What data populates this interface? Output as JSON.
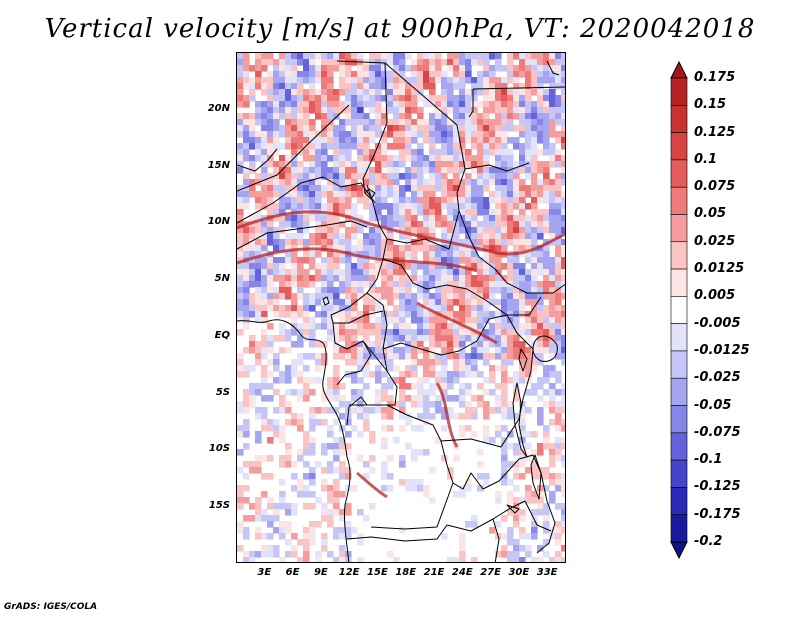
{
  "title": "Vertical velocity [m/s] at 900hPa, VT: 2020042018",
  "credit": "GrADS: IGES/COLA",
  "map": {
    "lon_range": [
      0,
      35
    ],
    "lat_range": [
      -20,
      25
    ],
    "lat_ticks": [
      {
        "value": 20,
        "label": "20N"
      },
      {
        "value": 15,
        "label": "15N"
      },
      {
        "value": 10,
        "label": "10N"
      },
      {
        "value": 5,
        "label": "5N"
      },
      {
        "value": 0,
        "label": "EQ"
      },
      {
        "value": -5,
        "label": "5S"
      },
      {
        "value": -10,
        "label": "10S"
      },
      {
        "value": -15,
        "label": "15S"
      }
    ],
    "lon_ticks": [
      {
        "value": 3,
        "label": "3E"
      },
      {
        "value": 6,
        "label": "6E"
      },
      {
        "value": 9,
        "label": "9E"
      },
      {
        "value": 12,
        "label": "12E"
      },
      {
        "value": 15,
        "label": "15E"
      },
      {
        "value": 18,
        "label": "18E"
      },
      {
        "value": 21,
        "label": "21E"
      },
      {
        "value": 24,
        "label": "24E"
      },
      {
        "value": 27,
        "label": "27E"
      },
      {
        "value": 30,
        "label": "30E"
      },
      {
        "value": 33,
        "label": "33E"
      }
    ]
  },
  "colorbar": {
    "levels": [
      "0.175",
      "0.15",
      "0.125",
      "0.1",
      "0.075",
      "0.05",
      "0.025",
      "0.0125",
      "0.005",
      "-0.005",
      "-0.0125",
      "-0.025",
      "-0.05",
      "-0.075",
      "-0.1",
      "-0.125",
      "-0.175",
      "-0.2"
    ],
    "colors": [
      "#a01818",
      "#b42424",
      "#c83232",
      "#d84444",
      "#e45c5c",
      "#ee7a7a",
      "#f59c9c",
      "#fbc4c4",
      "#fde4e4",
      "#ffffff",
      "#e2e2fa",
      "#c6c6f6",
      "#a6a6f0",
      "#8686e8",
      "#6262dc",
      "#4444cc",
      "#2a2ab8",
      "#1a1aa0",
      "#141482"
    ]
  },
  "palette": {
    "positive": "#d22b2b",
    "negative": "#3c3cd2",
    "neutral": "#ffffff",
    "border": "#000000"
  }
}
